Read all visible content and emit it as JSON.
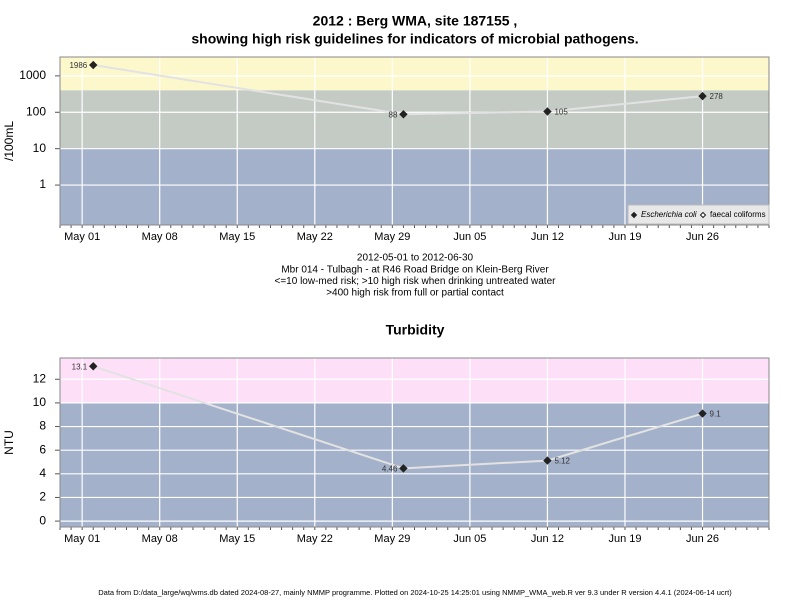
{
  "chart_data": [
    {
      "type": "line",
      "title": [
        "2012 : Berg WMA, site 187155 ,",
        "showing high risk guidelines for indicators of microbial pathogens."
      ],
      "y_label": "/100mL",
      "log": true,
      "x": [
        "2012-05-02",
        "2012-05-30",
        "2012-06-12",
        "2012-06-26"
      ],
      "xlim": [
        "2012-04-29",
        "2012-07-02"
      ],
      "xticks": [
        {
          "value": "2012-05-01",
          "label": "May 01"
        },
        {
          "value": "2012-05-08",
          "label": "May 08"
        },
        {
          "value": "2012-05-15",
          "label": "May 15"
        },
        {
          "value": "2012-05-22",
          "label": "May 22"
        },
        {
          "value": "2012-05-29",
          "label": "May 29"
        },
        {
          "value": "2012-06-05",
          "label": "Jun 05"
        },
        {
          "value": "2012-06-12",
          "label": "Jun 12"
        },
        {
          "value": "2012-06-19",
          "label": "Jun 19"
        },
        {
          "value": "2012-06-26",
          "label": "Jun 26"
        }
      ],
      "ylim": [
        0.08,
        3300
      ],
      "yticks": [
        1,
        10,
        100,
        1000
      ],
      "grid": true,
      "bands": [
        {
          "from": 400,
          "to": 3300,
          "color": "#fdf8cc"
        },
        {
          "from": 10,
          "to": 400,
          "color": "#c3cbc4"
        },
        {
          "from": 0.08,
          "to": 10,
          "color": "#a3b1ca"
        }
      ],
      "line_color": "#e2e2e2",
      "series": [
        {
          "name": "Escherichia coli",
          "color": "#222222",
          "marker": "filled-diamond",
          "values": [
            1986,
            88,
            105,
            278
          ]
        },
        {
          "name": "faecal coliforms",
          "color": "#222222",
          "marker": "open-diamond",
          "values": [
            null,
            null,
            null,
            null
          ]
        }
      ],
      "legend": "bottom-right",
      "caption": [
        "2012-05-01 to 2012-06-30",
        "Mbr 014 - Tulbagh - at R46 Road Bridge on Klein-Berg River",
        "<=10 low-med risk; >10 high risk when drinking untreated water",
        ">400 high risk from full or partial contact"
      ]
    },
    {
      "type": "line",
      "title": [
        "Turbidity"
      ],
      "y_label": "NTU",
      "log": false,
      "x": [
        "2012-05-02",
        "2012-05-30",
        "2012-06-12",
        "2012-06-26"
      ],
      "xlim": [
        "2012-04-29",
        "2012-07-02"
      ],
      "xticks": [
        {
          "value": "2012-05-01",
          "label": "May 01"
        },
        {
          "value": "2012-05-08",
          "label": "May 08"
        },
        {
          "value": "2012-05-15",
          "label": "May 15"
        },
        {
          "value": "2012-05-22",
          "label": "May 22"
        },
        {
          "value": "2012-05-29",
          "label": "May 29"
        },
        {
          "value": "2012-06-05",
          "label": "Jun 05"
        },
        {
          "value": "2012-06-12",
          "label": "Jun 12"
        },
        {
          "value": "2012-06-19",
          "label": "Jun 19"
        },
        {
          "value": "2012-06-26",
          "label": "Jun 26"
        }
      ],
      "ylim": [
        -0.5,
        13.8
      ],
      "yticks": [
        0,
        2,
        4,
        6,
        8,
        10,
        12
      ],
      "grid": true,
      "bands": [
        {
          "from": 10,
          "to": 13.8,
          "color": "#fde0f8"
        },
        {
          "from": -0.5,
          "to": 10,
          "color": "#a3b1ca"
        }
      ],
      "line_color": "#e2e2e2",
      "series": [
        {
          "name": "Turbidity",
          "color": "#222222",
          "marker": "filled-diamond",
          "values": [
            13.1,
            4.46,
            5.12,
            9.1
          ]
        }
      ]
    }
  ],
  "footer": "Data from D:/data_large/wq/wms.db dated 2024-08-27, mainly NMMP programme. Plotted on 2024-10-25 14:25:01 using NMMP_WMA_web.R ver 9.3 under R version 4.4.1 (2024-06-14 ucrt)"
}
